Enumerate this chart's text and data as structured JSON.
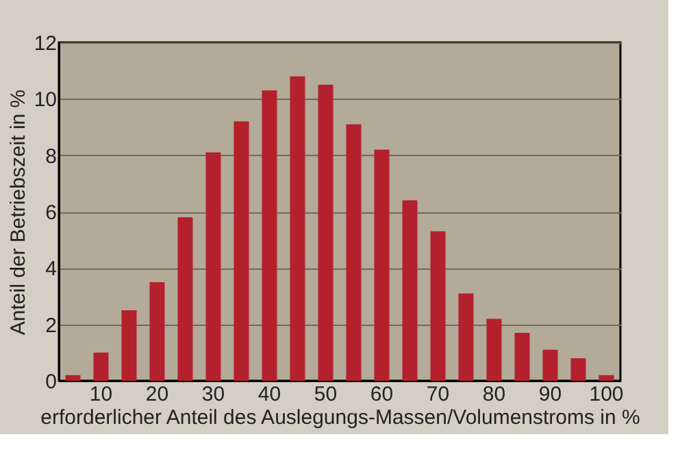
{
  "chart_data": {
    "type": "bar",
    "xlabel": "erforderlicher Anteil des Auslegungs-Massen/Volumenstroms in %",
    "ylabel": "Anteil der Betriebszeit in %",
    "categories": [
      null,
      "10",
      null,
      "20",
      null,
      "30",
      null,
      "40",
      null,
      "50",
      null,
      "60",
      null,
      "70",
      null,
      "80",
      null,
      "90",
      null,
      "100"
    ],
    "values": [
      0.2,
      1.0,
      2.5,
      3.5,
      5.8,
      8.1,
      9.2,
      10.3,
      10.8,
      10.5,
      9.1,
      8.2,
      6.4,
      5.3,
      3.1,
      2.2,
      1.7,
      1.1,
      0.8,
      0.2
    ],
    "color": "#b5202e",
    "ylim": [
      0,
      12
    ],
    "yticks": [
      0,
      2,
      4,
      6,
      8,
      10,
      12
    ],
    "grid": "y"
  }
}
